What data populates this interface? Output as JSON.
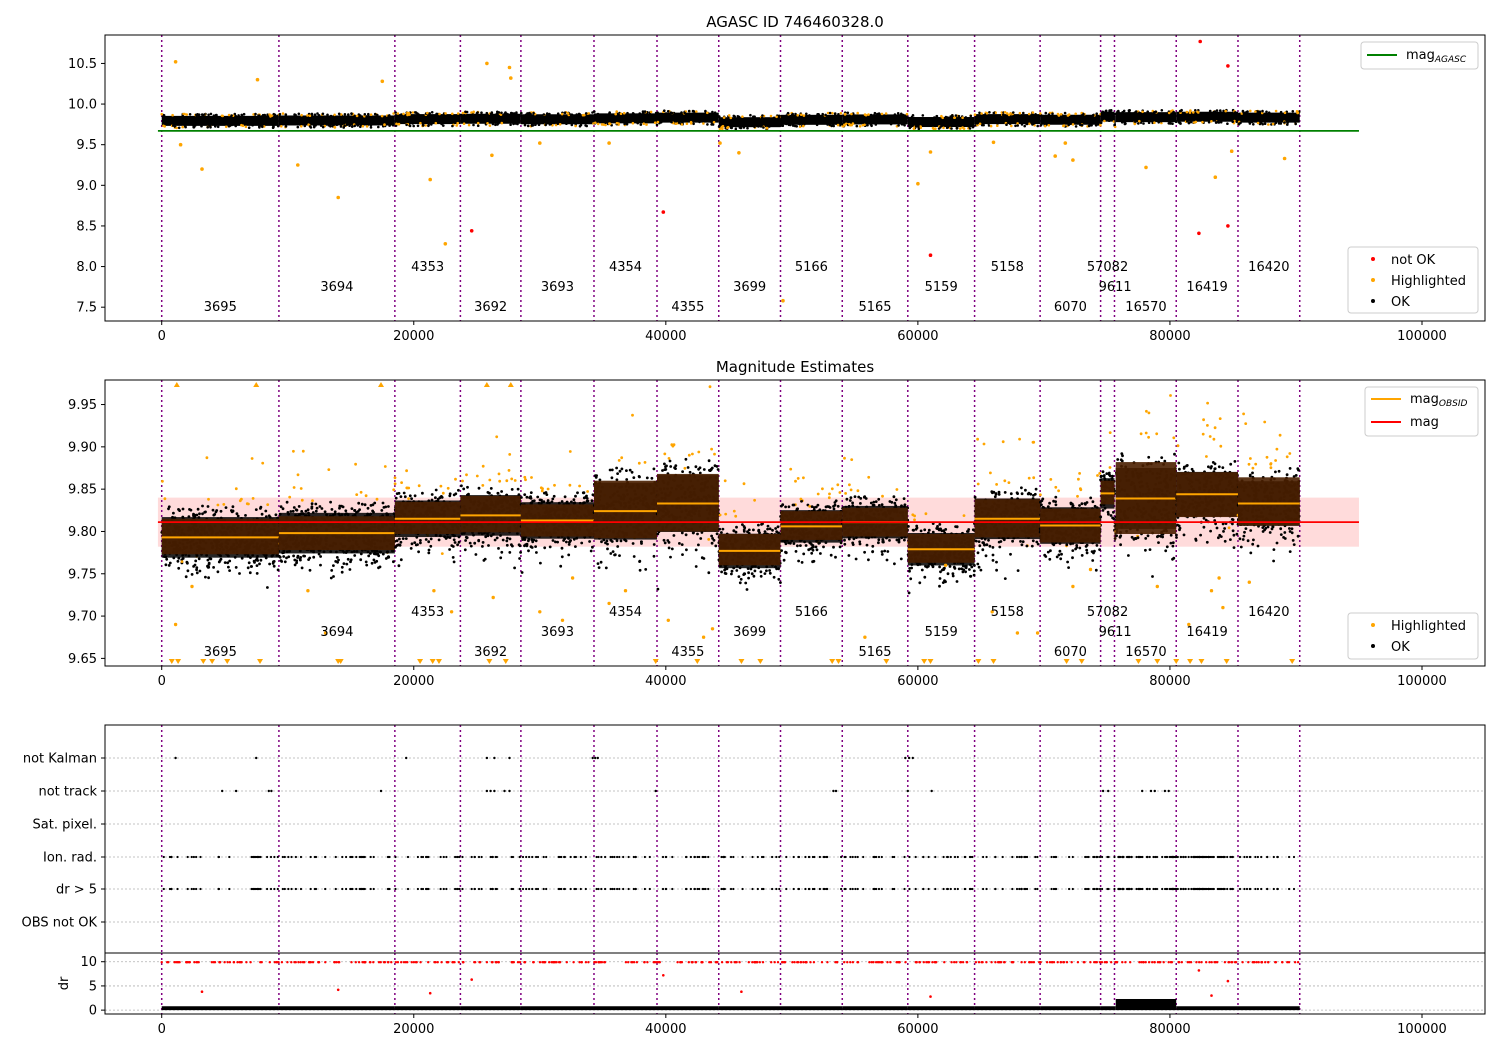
{
  "chart_data": [
    {
      "panel": "agasc",
      "type": "scatter",
      "title": "AGASC ID 746460328.0",
      "xlim": [
        -4500,
        105000
      ],
      "ylim": [
        7.33,
        10.85
      ],
      "xticks": [
        0,
        20000,
        40000,
        60000,
        80000,
        100000
      ],
      "xtick_labels": [
        "0",
        "20000",
        "40000",
        "60000",
        "80000",
        "100000"
      ],
      "yticks": [
        7.5,
        8.0,
        8.5,
        9.0,
        9.5,
        10.0,
        10.5
      ],
      "ytick_labels": [
        "7.5",
        "8.0",
        "8.5",
        "9.0",
        "9.5",
        "10.0",
        "10.5"
      ],
      "mag_agasc": 9.67,
      "mag_agasc_xrange": [
        -300,
        95000
      ],
      "legend_upper": {
        "placement": "top-right",
        "entries": [
          {
            "label": "mag",
            "sub": "AGASC",
            "color": "#008000"
          }
        ]
      },
      "legend_lower": {
        "placement": "bottom-right",
        "entries": [
          {
            "label": "not OK",
            "color": "#ff0000"
          },
          {
            "label": "Highlighted",
            "color": "#ffa500"
          },
          {
            "label": "OK",
            "color": "#000000"
          }
        ]
      },
      "outliers_highlighted": [
        [
          1100,
          10.52
        ],
        [
          3200,
          9.2
        ],
        [
          1500,
          9.5
        ],
        [
          7600,
          10.3
        ],
        [
          17500,
          10.28
        ],
        [
          10800,
          9.25
        ],
        [
          14000,
          8.85
        ],
        [
          21300,
          9.07
        ],
        [
          22500,
          8.28
        ],
        [
          25800,
          10.5
        ],
        [
          27600,
          10.45
        ],
        [
          27700,
          10.32
        ],
        [
          26200,
          9.37
        ],
        [
          30000,
          9.52
        ],
        [
          35500,
          9.52
        ],
        [
          44300,
          9.52
        ],
        [
          45800,
          9.4
        ],
        [
          49300,
          7.58
        ],
        [
          60000,
          9.02
        ],
        [
          61000,
          9.41
        ],
        [
          66000,
          9.53
        ],
        [
          70900,
          9.36
        ],
        [
          71700,
          9.52
        ],
        [
          72300,
          9.31
        ],
        [
          78100,
          9.22
        ],
        [
          83600,
          9.1
        ],
        [
          84900,
          9.42
        ],
        [
          89100,
          9.33
        ]
      ],
      "outliers_not_ok": [
        [
          24600,
          8.44
        ],
        [
          39800,
          8.67
        ],
        [
          61000,
          8.14
        ],
        [
          82400,
          10.77
        ],
        [
          84600,
          10.47
        ],
        [
          82300,
          8.41
        ],
        [
          84600,
          8.5
        ]
      ]
    },
    {
      "panel": "mag_estimates",
      "type": "scatter",
      "title": "Magnitude Estimates",
      "xlim": [
        -4500,
        105000
      ],
      "ylim": [
        9.641,
        9.979
      ],
      "xticks": [
        0,
        20000,
        40000,
        60000,
        80000,
        100000
      ],
      "xtick_labels": [
        "0",
        "20000",
        "40000",
        "60000",
        "80000",
        "100000"
      ],
      "yticks": [
        9.65,
        9.7,
        9.75,
        9.8,
        9.85,
        9.9,
        9.95
      ],
      "ytick_labels": [
        "9.65",
        "9.70",
        "9.75",
        "9.80",
        "9.85",
        "9.90",
        "9.95"
      ],
      "mag": 9.811,
      "mag_err": 0.029,
      "mag_xrange": [
        -300,
        95000
      ],
      "legend_upper": {
        "placement": "top-right",
        "entries": [
          {
            "label": "mag",
            "sub": "OBSID",
            "color": "#ffa500"
          },
          {
            "label": "mag",
            "sub": "",
            "color": "#ff0000"
          }
        ]
      },
      "legend_lower": {
        "placement": "bottom-right",
        "entries": [
          {
            "label": "Highlighted",
            "color": "#ffa500"
          },
          {
            "label": "OK",
            "color": "#000000"
          }
        ]
      },
      "top_triangle_x": [
        1200,
        7500,
        17400,
        25800,
        27700
      ],
      "bottom_triangle_x": [
        800,
        1300,
        3300,
        4000,
        5200,
        7800,
        14000,
        14200,
        20500,
        21500,
        22000,
        26000,
        27300,
        39200,
        42500,
        46000,
        47500,
        53200,
        53700,
        57500,
        60500,
        61000,
        64800,
        66000,
        71800,
        73000,
        77500,
        79000,
        80500,
        81600,
        82500,
        84500,
        89700
      ],
      "scattered_highlighted": [
        [
          1100,
          9.69
        ],
        [
          2400,
          9.735
        ],
        [
          13000,
          9.68
        ],
        [
          11600,
          9.73
        ],
        [
          21600,
          9.73
        ],
        [
          23000,
          9.705
        ],
        [
          26300,
          9.722
        ],
        [
          30000,
          9.705
        ],
        [
          31800,
          9.695
        ],
        [
          32600,
          9.745
        ],
        [
          35500,
          9.715
        ],
        [
          36800,
          9.73
        ],
        [
          40200,
          9.695
        ],
        [
          43000,
          9.675
        ],
        [
          43700,
          9.685
        ],
        [
          55800,
          9.675
        ],
        [
          62200,
          9.76
        ],
        [
          65900,
          9.705
        ],
        [
          67900,
          9.68
        ],
        [
          69500,
          9.68
        ],
        [
          72300,
          9.735
        ],
        [
          73700,
          9.755
        ],
        [
          79000,
          9.735
        ],
        [
          81500,
          9.69
        ],
        [
          83300,
          9.73
        ],
        [
          83900,
          9.745
        ],
        [
          84200,
          9.71
        ],
        [
          86300,
          9.74
        ]
      ]
    },
    {
      "panel": "flags",
      "type": "scatter",
      "xlim": [
        -4500,
        105000
      ],
      "xticks": [
        0,
        20000,
        40000,
        60000,
        80000,
        100000
      ],
      "xtick_labels": [
        "0",
        "20000",
        "40000",
        "60000",
        "80000",
        "100000"
      ],
      "categories": [
        "not Kalman",
        "not track",
        "Sat. pixel.",
        "Ion. rad.",
        "dr > 5",
        "OBS not OK"
      ],
      "not_kalman_x": [
        1100,
        7500,
        19400,
        25800,
        26400,
        27600,
        34200,
        34400,
        34600,
        59000,
        59300,
        59600
      ],
      "not_track_x": [
        4800,
        5900,
        8500,
        8700,
        17400,
        25800,
        26100,
        26400,
        27200,
        27600,
        39200,
        53300,
        53500,
        59200,
        61100,
        74700,
        75100,
        77800,
        78500,
        78800,
        79600,
        79900
      ]
    },
    {
      "panel": "dr",
      "type": "scatter",
      "ylabel": "dr",
      "ylim": [
        -0.8,
        11.8
      ],
      "yticks": [
        0,
        5,
        10
      ],
      "ytick_labels": [
        "0",
        "5",
        "10"
      ],
      "xlim": [
        -4500,
        105000
      ],
      "xticks": [
        0,
        20000,
        40000,
        60000,
        80000,
        100000
      ],
      "xtick_labels": [
        "0",
        "20000",
        "40000",
        "60000",
        "80000",
        "100000"
      ],
      "red_outliers": [
        [
          3200,
          3.8
        ],
        [
          14000,
          4.2
        ],
        [
          21300,
          3.5
        ],
        [
          24600,
          6.3
        ],
        [
          39800,
          7.2
        ],
        [
          46000,
          3.8
        ],
        [
          61000,
          2.8
        ],
        [
          82300,
          8.2
        ],
        [
          83300,
          3.0
        ],
        [
          84600,
          6.0
        ]
      ]
    }
  ],
  "observations": [
    {
      "obsid": "3695",
      "start": 0,
      "end": 9300,
      "mean": 9.793,
      "band_lo": 9.773,
      "band_hi": 9.815,
      "spread": 0.02,
      "row": 2
    },
    {
      "obsid": "3694",
      "start": 9300,
      "end": 18500,
      "mean": 9.798,
      "band_lo": 9.778,
      "band_hi": 9.818,
      "spread": 0.02,
      "row": 1
    },
    {
      "obsid": "4353",
      "start": 18500,
      "end": 23700,
      "mean": 9.815,
      "band_lo": 9.797,
      "band_hi": 9.835,
      "spread": 0.018,
      "row": 0
    },
    {
      "obsid": "3692",
      "start": 23700,
      "end": 28500,
      "mean": 9.819,
      "band_lo": 9.799,
      "band_hi": 9.842,
      "spread": 0.02,
      "row": 2
    },
    {
      "obsid": "3693",
      "start": 28500,
      "end": 34300,
      "mean": 9.813,
      "band_lo": 9.794,
      "band_hi": 9.832,
      "spread": 0.018,
      "row": 1
    },
    {
      "obsid": "4354",
      "start": 34300,
      "end": 39300,
      "mean": 9.824,
      "band_lo": 9.792,
      "band_hi": 9.86,
      "spread": 0.028,
      "row": 0
    },
    {
      "obsid": "4355",
      "start": 39300,
      "end": 44200,
      "mean": 9.833,
      "band_lo": 9.8,
      "band_hi": 9.868,
      "spread": 0.028,
      "row": 2
    },
    {
      "obsid": "3699",
      "start": 44200,
      "end": 49100,
      "mean": 9.777,
      "band_lo": 9.76,
      "band_hi": 9.797,
      "spread": 0.017,
      "row": 1
    },
    {
      "obsid": "5166",
      "start": 49100,
      "end": 54000,
      "mean": 9.806,
      "band_lo": 9.79,
      "band_hi": 9.824,
      "spread": 0.016,
      "row": 0
    },
    {
      "obsid": "5165",
      "start": 54000,
      "end": 59200,
      "mean": 9.811,
      "band_lo": 9.794,
      "band_hi": 9.828,
      "spread": 0.016,
      "row": 2
    },
    {
      "obsid": "5159",
      "start": 59200,
      "end": 64500,
      "mean": 9.779,
      "band_lo": 9.763,
      "band_hi": 9.797,
      "spread": 0.016,
      "row": 1
    },
    {
      "obsid": "5158",
      "start": 64500,
      "end": 69700,
      "mean": 9.815,
      "band_lo": 9.793,
      "band_hi": 9.838,
      "spread": 0.02,
      "row": 0
    },
    {
      "obsid": "6070",
      "start": 69700,
      "end": 74500,
      "mean": 9.807,
      "band_lo": 9.787,
      "band_hi": 9.827,
      "spread": 0.018,
      "row": 2
    },
    {
      "obsid": "57082",
      "start": 74500,
      "end": 75600,
      "mean": 9.845,
      "band_lo": 9.832,
      "band_hi": 9.86,
      "spread": 0.015,
      "row": 0
    },
    {
      "obsid": "9611",
      "start": 75600,
      "end": 75700,
      "mean": 9.8,
      "band_lo": 9.79,
      "band_hi": 9.81,
      "spread": 0.01,
      "row": 1
    },
    {
      "obsid": "16570",
      "start": 75700,
      "end": 80500,
      "mean": 9.839,
      "band_lo": 9.797,
      "band_hi": 9.882,
      "spread": 0.03,
      "row": 2
    },
    {
      "obsid": "16419",
      "start": 80500,
      "end": 85400,
      "mean": 9.844,
      "band_lo": 9.817,
      "band_hi": 9.87,
      "spread": 0.022,
      "row": 1
    },
    {
      "obsid": "16420",
      "start": 85400,
      "end": 90300,
      "mean": 9.833,
      "band_lo": 9.807,
      "band_hi": 9.864,
      "spread": 0.022,
      "row": 0
    }
  ],
  "boundaries": [
    0,
    9300,
    18500,
    23700,
    28500,
    34300,
    39300,
    44200,
    49100,
    54000,
    59200,
    64500,
    69700,
    74500,
    75600,
    80500,
    85400,
    90300
  ],
  "colors": {
    "ok": "#000000",
    "highlighted": "#ffa500",
    "not_ok": "#ff0000",
    "mag_agasc_line": "#008000",
    "mag_line": "#ff0000",
    "mag_band": "#ffcccc",
    "obs_band": "#4a1f00",
    "boundary": "#800080",
    "grid": "#b0b0b0"
  }
}
